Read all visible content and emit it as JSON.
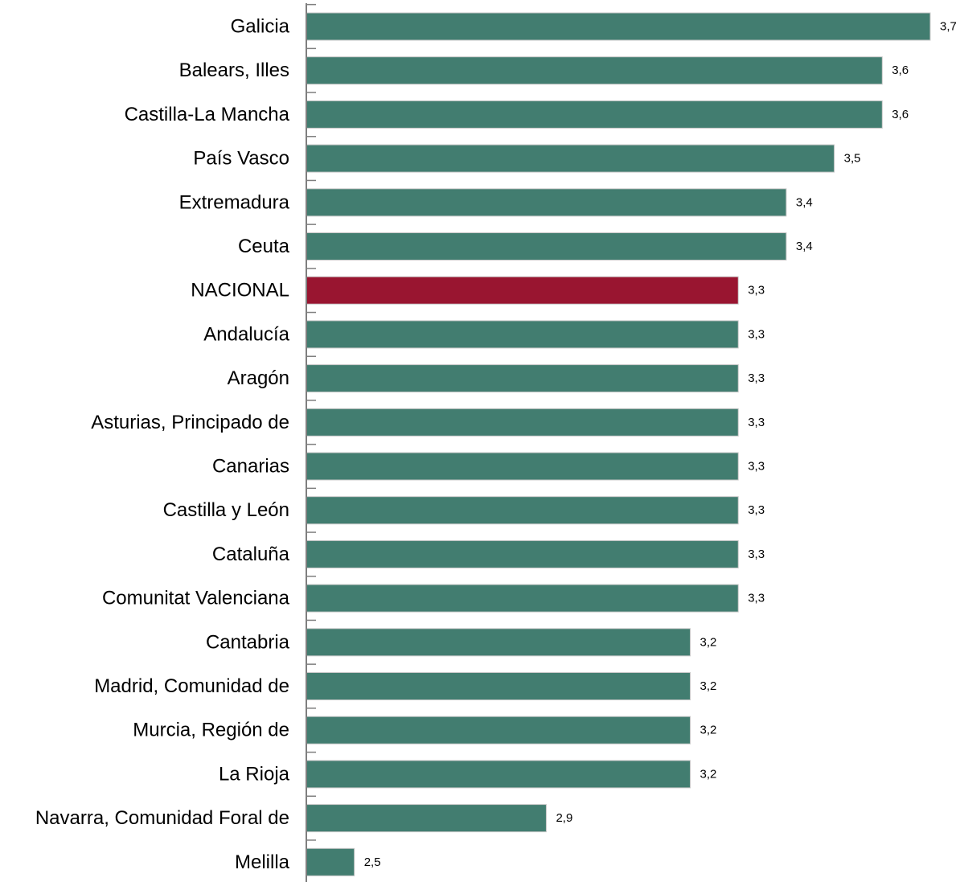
{
  "chart_data": {
    "type": "bar",
    "orientation": "horizontal",
    "title": "",
    "xlabel": "",
    "ylabel": "",
    "categories": [
      "Galicia",
      "Balears, Illes",
      "Castilla-La Mancha",
      "País Vasco",
      "Extremadura",
      "Ceuta",
      "NACIONAL",
      "Andalucía",
      "Aragón",
      "Asturias, Principado de",
      "Canarias",
      "Castilla y León",
      "Cataluña",
      "Comunitat Valenciana",
      "Cantabria",
      "Madrid, Comunidad de",
      "Murcia, Región de",
      "La Rioja",
      "Navarra, Comunidad Foral de",
      "Melilla"
    ],
    "values": [
      3.7,
      3.6,
      3.6,
      3.5,
      3.4,
      3.4,
      3.3,
      3.3,
      3.3,
      3.3,
      3.3,
      3.3,
      3.3,
      3.3,
      3.2,
      3.2,
      3.2,
      3.2,
      2.9,
      2.5
    ],
    "value_labels": [
      "3,7",
      "3,6",
      "3,6",
      "3,5",
      "3,4",
      "3,4",
      "3,3",
      "3,3",
      "3,3",
      "3,3",
      "3,3",
      "3,3",
      "3,3",
      "3,3",
      "3,2",
      "3,2",
      "3,2",
      "3,2",
      "2,9",
      "2,5"
    ],
    "xlim": [
      2.4,
      3.7
    ],
    "highlight_category": "NACIONAL",
    "grid": false,
    "legend": "none",
    "colors": {
      "bar": "#427d70",
      "highlight": "#991530",
      "axis": "#7f7f7f"
    }
  }
}
